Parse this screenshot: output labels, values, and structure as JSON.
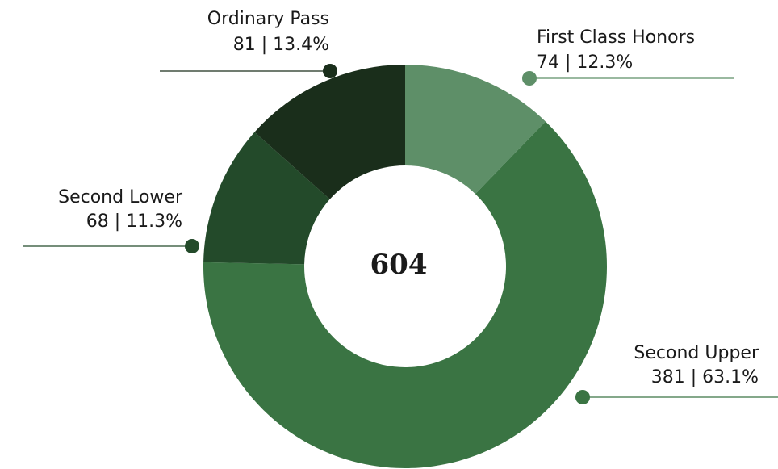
{
  "chart_data": {
    "type": "donut",
    "categories": [
      "First Class Honors",
      "Second Upper",
      "Second Lower",
      "Ordinary Pass"
    ],
    "values": [
      74,
      381,
      68,
      81
    ],
    "value_labels": [
      "74 | 12.3%",
      "381 | 63.1%",
      "68 | 11.3%",
      "81 | 13.4%"
    ],
    "colors": [
      "#5e8f68",
      "#3a7443",
      "#234a2a",
      "#1a2e1b"
    ],
    "total": 604
  }
}
